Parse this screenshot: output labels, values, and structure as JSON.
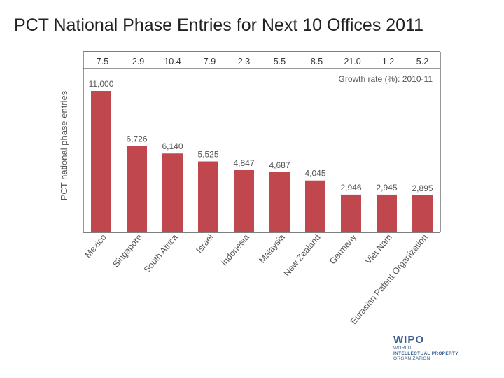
{
  "slide": {
    "title": "PCT National Phase Entries for Next 10 Offices 2011"
  },
  "chart_data": {
    "type": "bar",
    "title": "PCT National Phase Entries for Next 10 Offices 2011",
    "xlabel": "",
    "ylabel": "PCT national phase entries",
    "categories": [
      "Mexico",
      "Singapore",
      "South Africa",
      "Israel",
      "Indonesia",
      "Malaysia",
      "New Zealand",
      "Germany",
      "Viet Nam",
      "Eurasian Patent Organization"
    ],
    "values": [
      11000,
      6726,
      6140,
      5525,
      4847,
      4687,
      4045,
      2946,
      2945,
      2895
    ],
    "value_labels": [
      "11,000",
      "6,726",
      "6,140",
      "5,525",
      "4,847",
      "4,687",
      "4,045",
      "2,946",
      "2,945",
      "2,895"
    ],
    "growth_rates": [
      "-7.5",
      "-2.9",
      "10.4",
      "-7.9",
      "2.3",
      "5.5",
      "-8.5",
      "-21.0",
      "-1.2",
      "5.2"
    ],
    "growth_label": "Growth rate (%): 2010-11",
    "ylim": [
      0,
      12000
    ],
    "grid": false,
    "bar_color": "#c0474e"
  },
  "logo": {
    "mark": "WIPO",
    "line1": "WORLD",
    "line2": "INTELLECTUAL PROPERTY",
    "line3": "ORGANIZATION"
  },
  "colors": {
    "bar": "#c0474e",
    "text": "#555555",
    "logo": "#3a5f8f"
  }
}
